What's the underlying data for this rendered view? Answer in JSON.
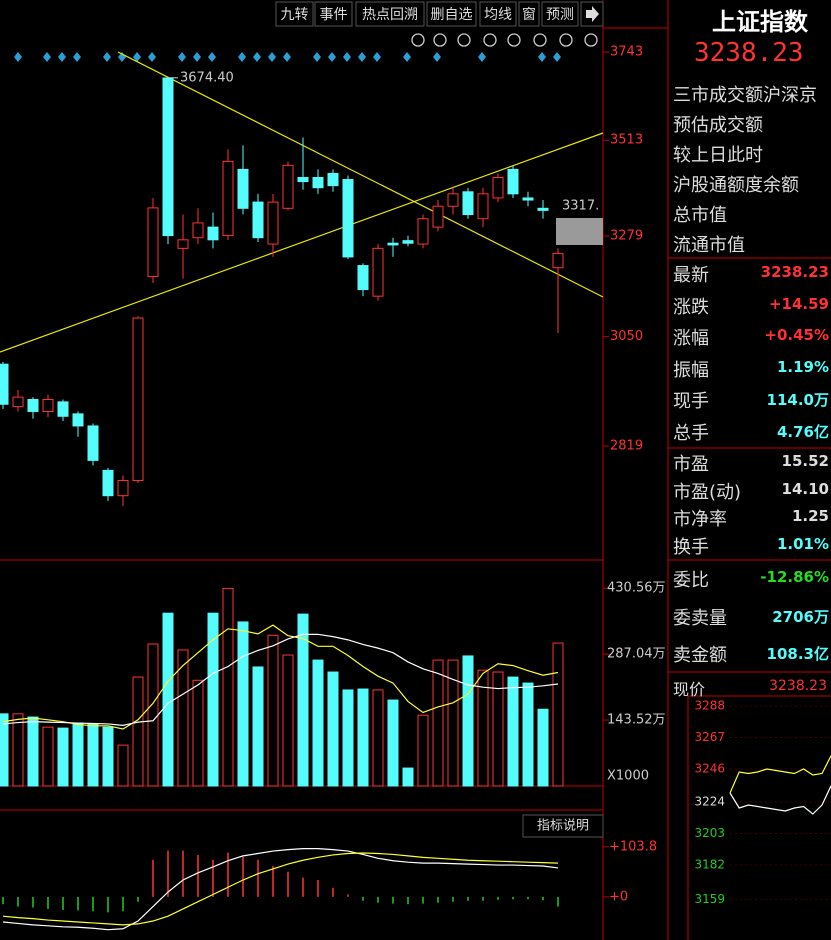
{
  "toolbar": {
    "buttons": [
      "九转",
      "事件",
      "热点回溯",
      "删自选",
      "均线",
      "窗",
      "预测"
    ]
  },
  "quote": {
    "name": "上证指数",
    "price": "3238.23",
    "labels": [
      "三市成交额沪深京",
      "预估成交额",
      "较上日此时",
      "沪股通额度余额",
      "总市值",
      "流通市值"
    ],
    "stats": [
      {
        "label": "最新",
        "value": "3238.23"
      },
      {
        "label": "涨跌",
        "value": "+14.59"
      },
      {
        "label": "涨幅",
        "value": "+0.45%"
      },
      {
        "label": "振幅",
        "value": "1.19%"
      },
      {
        "label": "现手",
        "value": "114.0万"
      },
      {
        "label": "总手",
        "value": "4.76亿"
      }
    ],
    "valuation": [
      {
        "label": "市盈",
        "value": "15.52"
      },
      {
        "label": "市盈(动)",
        "value": "14.10"
      },
      {
        "label": "市净率",
        "value": "1.25"
      },
      {
        "label": "换手",
        "value": "1.01%"
      }
    ],
    "orders": [
      {
        "label": "委比",
        "value": "-12.86%"
      },
      {
        "label": "委卖量",
        "value": "2706万"
      },
      {
        "label": "卖金额",
        "value": "108.3亿"
      }
    ],
    "current": {
      "label": "现价",
      "value": "3238.23"
    }
  },
  "chart_data": [
    {
      "type": "candlestick",
      "log_scale": true,
      "up_color": "#ff3232",
      "down_color": "#54fcfc",
      "open": [
        2990,
        2900,
        2915,
        2890,
        2910,
        2885,
        2860,
        2770,
        2720,
        2750,
        3185,
        3674,
        3250,
        3275,
        3300,
        3280,
        3440,
        3360,
        3260,
        3345,
        3420,
        3420,
        3430,
        3415,
        3210,
        3140,
        3262,
        3268,
        3260,
        3300,
        3350,
        3385,
        3320,
        3370,
        3440,
        3370,
        3345,
        3205
      ],
      "high": [
        2995,
        2935,
        2920,
        2925,
        2915,
        2890,
        2865,
        2775,
        2760,
        3095,
        3370,
        3674.4,
        3330,
        3345,
        3335,
        3490,
        3500,
        3380,
        3380,
        3460,
        3520,
        3440,
        3440,
        3425,
        3215,
        3260,
        3275,
        3280,
        3330,
        3365,
        3395,
        3395,
        3395,
        3430,
        3450,
        3385,
        3365,
        3250
      ],
      "low": [
        2895,
        2890,
        2875,
        2878,
        2870,
        2838,
        2780,
        2710,
        2700,
        2745,
        3170,
        3260,
        3180,
        3260,
        3250,
        3270,
        3330,
        3265,
        3230,
        3340,
        3390,
        3380,
        3385,
        3225,
        3140,
        3130,
        3230,
        3255,
        3250,
        3290,
        3330,
        3320,
        3300,
        3360,
        3370,
        3350,
        3320,
        3058
      ],
      "close": [
        2905,
        2920,
        2890,
        2915,
        2880,
        2860,
        2790,
        2720,
        2750,
        3091,
        3346,
        3280,
        3270,
        3310,
        3270,
        3460,
        3345,
        3275,
        3360,
        3450,
        3410,
        3395,
        3400,
        3230,
        3155,
        3250,
        3258,
        3262,
        3320,
        3350,
        3380,
        3330,
        3380,
        3420,
        3380,
        3365,
        3340,
        3238.23
      ],
      "ylim": [
        2597,
        3803
      ],
      "yticks": [
        3743,
        3513,
        3279,
        3050,
        2819
      ],
      "annotations": [
        {
          "text": "3674.40",
          "value": 3674.4
        },
        {
          "text": "3317.",
          "value": 3317
        }
      ]
    },
    {
      "type": "volume",
      "ylim": [
        0,
        470
      ],
      "yticks": [
        {
          "value": 430.56,
          "label": "430.56万"
        },
        {
          "value": 287.04,
          "label": "287.04万"
        },
        {
          "value": 143.52,
          "label": "143.52万"
        }
      ],
      "unit_label": "X1000",
      "values": [
        157,
        157,
        150,
        128,
        126,
        137,
        135,
        128,
        89,
        237,
        309,
        376,
        296,
        230,
        376,
        430,
        357,
        259,
        328,
        285,
        374,
        274,
        248,
        209,
        211,
        209,
        187,
        39,
        154,
        274,
        274,
        283,
        252,
        248,
        237,
        224,
        167,
        311
      ],
      "series": [
        {
          "color": "#ffff33",
          "values": [
            140,
            145,
            148,
            144,
            140,
            134,
            131,
            131,
            124,
            144,
            180,
            228,
            262,
            290,
            318,
            342,
            338,
            331,
            350,
            327,
            321,
            304,
            304,
            284,
            260,
            239,
            224,
            184,
            160,
            172,
            181,
            200,
            245,
            266,
            262,
            251,
            241,
            247
          ]
        },
        {
          "color": "#ffffff",
          "values": [
            135,
            138,
            140,
            139,
            138,
            137,
            136,
            135,
            132,
            139,
            142,
            180,
            200,
            220,
            245,
            260,
            282,
            295,
            305,
            320,
            330,
            330,
            325,
            318,
            308,
            300,
            290,
            270,
            255,
            245,
            232,
            220,
            215,
            212,
            214,
            215,
            218,
            222
          ]
        }
      ]
    },
    {
      "type": "macd",
      "ylim": [
        -79,
        176
      ],
      "button": "指标说明",
      "yticks": [
        {
          "value": 103.8,
          "label": "+103.8"
        },
        {
          "value": 0,
          "label": "+0"
        }
      ],
      "values": [
        -15,
        -20,
        -22,
        -25,
        -27,
        -28,
        -30,
        -32,
        -30,
        -10,
        77,
        96,
        96,
        87,
        77,
        92,
        83,
        77,
        64,
        52,
        40,
        35,
        19,
        5,
        -8,
        -12,
        -14,
        -15,
        -14,
        -12,
        -10,
        -8,
        -8,
        -6,
        -5,
        -5,
        -7,
        -20
      ],
      "series": [
        {
          "color": "#ffffff",
          "values": [
            -52,
            -55,
            -58,
            -60,
            -62,
            -63,
            -65,
            -68,
            -66,
            -50,
            -20,
            10,
            35,
            50,
            62,
            75,
            85,
            90,
            95,
            98,
            100,
            100,
            98,
            95,
            88,
            80,
            75,
            72,
            70,
            70,
            69,
            68,
            67,
            66,
            66,
            65,
            64,
            60
          ]
        },
        {
          "color": "#ffff33",
          "values": [
            -40,
            -43,
            -45,
            -48,
            -50,
            -52,
            -54,
            -56,
            -58,
            -56,
            -50,
            -40,
            -25,
            -10,
            5,
            20,
            35,
            48,
            58,
            68,
            76,
            82,
            87,
            90,
            91,
            90,
            88,
            85,
            82,
            80,
            78,
            76,
            75,
            74,
            73,
            72,
            71,
            70
          ]
        }
      ]
    },
    {
      "type": "line",
      "ylim": [
        3132,
        3292
      ],
      "yticks": [
        3288,
        3267,
        3246,
        3224,
        3203,
        3182,
        3159
      ],
      "series": [
        {
          "color": "#ffffff",
          "values": [
            3230,
            3220,
            3222,
            3221,
            3220,
            3219,
            3218,
            3220,
            3221,
            3216,
            3222,
            3235
          ]
        },
        {
          "color": "#ffff33",
          "values": [
            3230,
            3244,
            3243,
            3244,
            3246,
            3245,
            3244,
            3243,
            3246,
            3242,
            3243,
            3255
          ]
        }
      ]
    }
  ]
}
